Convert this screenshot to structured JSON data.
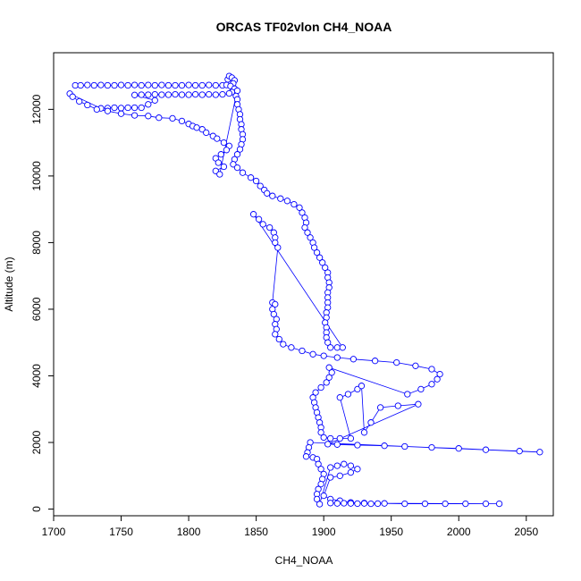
{
  "chart_data": {
    "type": "scatter",
    "title": "ORCAS TF02vlon CH4_NOAA",
    "xlabel": "CH4_NOAA",
    "ylabel": "Altitude (m)",
    "xlim": [
      1700,
      2070
    ],
    "ylim": [
      -200,
      13700
    ],
    "x_ticks": [
      1700,
      1750,
      1800,
      1850,
      1900,
      1950,
      2000,
      2050
    ],
    "y_ticks": [
      0,
      2000,
      4000,
      6000,
      8000,
      10000,
      12000
    ],
    "x_tick_labels": [
      "1700",
      "1750",
      "1800",
      "1850",
      "1900",
      "1950",
      "2000",
      "2050"
    ],
    "y_tick_labels": [
      "0",
      "2000",
      "4000",
      "6000",
      "8000",
      "10000",
      "12000"
    ],
    "point_color": "#0000ff",
    "series": [
      {
        "name": "CH4_NOAA",
        "points": [
          [
            1716,
            12720
          ],
          [
            1720,
            12720
          ],
          [
            1725,
            12730
          ],
          [
            1730,
            12720
          ],
          [
            1735,
            12730
          ],
          [
            1740,
            12720
          ],
          [
            1745,
            12720
          ],
          [
            1750,
            12730
          ],
          [
            1755,
            12720
          ],
          [
            1760,
            12730
          ],
          [
            1765,
            12720
          ],
          [
            1770,
            12730
          ],
          [
            1775,
            12720
          ],
          [
            1780,
            12730
          ],
          [
            1785,
            12720
          ],
          [
            1790,
            12720
          ],
          [
            1795,
            12720
          ],
          [
            1800,
            12730
          ],
          [
            1805,
            12720
          ],
          [
            1810,
            12720
          ],
          [
            1815,
            12730
          ],
          [
            1820,
            12720
          ],
          [
            1825,
            12720
          ],
          [
            1828,
            12730
          ],
          [
            1829,
            12900
          ],
          [
            1830,
            13000
          ],
          [
            1832,
            12950
          ],
          [
            1834,
            12870
          ],
          [
            1833,
            12780
          ],
          [
            1831,
            12700
          ],
          [
            1834,
            12620
          ],
          [
            1836,
            12560
          ],
          [
            1832,
            12520
          ],
          [
            1830,
            12480
          ],
          [
            1825,
            12450
          ],
          [
            1820,
            12440
          ],
          [
            1815,
            12450
          ],
          [
            1810,
            12440
          ],
          [
            1805,
            12450
          ],
          [
            1800,
            12440
          ],
          [
            1795,
            12440
          ],
          [
            1790,
            12450
          ],
          [
            1785,
            12440
          ],
          [
            1780,
            12440
          ],
          [
            1775,
            12450
          ],
          [
            1770,
            12440
          ],
          [
            1765,
            12440
          ],
          [
            1760,
            12430
          ],
          [
            1775,
            12270
          ],
          [
            1770,
            12150
          ],
          [
            1765,
            12050
          ],
          [
            1760,
            12050
          ],
          [
            1755,
            12050
          ],
          [
            1750,
            12040
          ],
          [
            1745,
            12050
          ],
          [
            1740,
            12040
          ],
          [
            1735,
            12030
          ],
          [
            1712,
            12470
          ],
          [
            1714,
            12380
          ],
          [
            1719,
            12240
          ],
          [
            1725,
            12130
          ],
          [
            1732,
            12000
          ],
          [
            1740,
            11950
          ],
          [
            1750,
            11870
          ],
          [
            1760,
            11820
          ],
          [
            1770,
            11800
          ],
          [
            1778,
            11750
          ],
          [
            1788,
            11730
          ],
          [
            1795,
            11650
          ],
          [
            1800,
            11560
          ],
          [
            1803,
            11500
          ],
          [
            1806,
            11450
          ],
          [
            1810,
            11400
          ],
          [
            1813,
            11300
          ],
          [
            1818,
            11200
          ],
          [
            1821,
            11120
          ],
          [
            1826,
            11000
          ],
          [
            1830,
            10900
          ],
          [
            1828,
            10780
          ],
          [
            1824,
            10650
          ],
          [
            1820,
            10530
          ],
          [
            1822,
            10400
          ],
          [
            1826,
            10280
          ],
          [
            1820,
            10150
          ],
          [
            1823,
            10050
          ],
          [
            1835,
            12400
          ],
          [
            1836,
            12300
          ],
          [
            1836,
            12150
          ],
          [
            1837,
            12000
          ],
          [
            1838,
            11850
          ],
          [
            1838,
            11700
          ],
          [
            1839,
            11550
          ],
          [
            1839,
            11400
          ],
          [
            1840,
            11250
          ],
          [
            1840,
            11100
          ],
          [
            1839,
            10950
          ],
          [
            1838,
            10800
          ],
          [
            1836,
            10650
          ],
          [
            1834,
            10500
          ],
          [
            1833,
            10350
          ],
          [
            1836,
            10250
          ],
          [
            1840,
            10100
          ],
          [
            1846,
            9950
          ],
          [
            1850,
            9850
          ],
          [
            1853,
            9700
          ],
          [
            1856,
            9580
          ],
          [
            1858,
            9480
          ],
          [
            1862,
            9400
          ],
          [
            1868,
            9320
          ],
          [
            1873,
            9250
          ],
          [
            1878,
            9150
          ],
          [
            1882,
            9050
          ],
          [
            1884,
            8900
          ],
          [
            1886,
            8750
          ],
          [
            1887,
            8600
          ],
          [
            1886,
            8450
          ],
          [
            1888,
            8300
          ],
          [
            1890,
            8150
          ],
          [
            1892,
            8000
          ],
          [
            1893,
            7850
          ],
          [
            1895,
            7700
          ],
          [
            1897,
            7550
          ],
          [
            1899,
            7400
          ],
          [
            1901,
            7250
          ],
          [
            1903,
            7100
          ],
          [
            1903,
            6950
          ],
          [
            1904,
            6800
          ],
          [
            1904,
            6650
          ],
          [
            1903,
            6500
          ],
          [
            1903,
            6350
          ],
          [
            1903,
            6200
          ],
          [
            1903,
            6050
          ],
          [
            1902,
            5900
          ],
          [
            1902,
            5750
          ],
          [
            1901,
            5600
          ],
          [
            1902,
            5450
          ],
          [
            1902,
            5300
          ],
          [
            1902,
            5150
          ],
          [
            1903,
            5000
          ],
          [
            1905,
            4850
          ],
          [
            1910,
            4850
          ],
          [
            1914,
            4850
          ],
          [
            1848,
            8850
          ],
          [
            1852,
            8700
          ],
          [
            1855,
            8550
          ],
          [
            1860,
            8450
          ],
          [
            1863,
            8300
          ],
          [
            1864,
            8150
          ],
          [
            1864,
            8000
          ],
          [
            1866,
            7850
          ],
          [
            1862,
            6200
          ],
          [
            1864,
            6150
          ],
          [
            1862,
            6000
          ],
          [
            1863,
            5850
          ],
          [
            1865,
            5700
          ],
          [
            1864,
            5550
          ],
          [
            1865,
            5400
          ],
          [
            1864,
            5250
          ],
          [
            1867,
            5100
          ],
          [
            1870,
            4950
          ],
          [
            1876,
            4850
          ],
          [
            1884,
            4750
          ],
          [
            1892,
            4650
          ],
          [
            1900,
            4600
          ],
          [
            1910,
            4550
          ],
          [
            1922,
            4500
          ],
          [
            1938,
            4450
          ],
          [
            1954,
            4400
          ],
          [
            1968,
            4300
          ],
          [
            1980,
            4200
          ],
          [
            1986,
            4050
          ],
          [
            1984,
            3900
          ],
          [
            1980,
            3750
          ],
          [
            1972,
            3600
          ],
          [
            1962,
            3450
          ],
          [
            1904,
            4250
          ],
          [
            1906,
            4100
          ],
          [
            1904,
            3950
          ],
          [
            1902,
            3800
          ],
          [
            1898,
            3650
          ],
          [
            1894,
            3500
          ],
          [
            1892,
            3350
          ],
          [
            1893,
            3200
          ],
          [
            1894,
            3050
          ],
          [
            1895,
            2900
          ],
          [
            1896,
            2750
          ],
          [
            1897,
            2600
          ],
          [
            1898,
            2450
          ],
          [
            1898,
            2300
          ],
          [
            1900,
            2150
          ],
          [
            1905,
            2120
          ],
          [
            1912,
            2120
          ],
          [
            1920,
            2120
          ],
          [
            1912,
            3350
          ],
          [
            1918,
            3450
          ],
          [
            1925,
            3600
          ],
          [
            1928,
            3700
          ],
          [
            1930,
            2300
          ],
          [
            1935,
            2600
          ],
          [
            1942,
            3050
          ],
          [
            1955,
            3100
          ],
          [
            1970,
            3150
          ],
          [
            1903,
            1950
          ],
          [
            1910,
            1940
          ],
          [
            1925,
            1920
          ],
          [
            1945,
            1900
          ],
          [
            1960,
            1880
          ],
          [
            1980,
            1850
          ],
          [
            2000,
            1820
          ],
          [
            2020,
            1780
          ],
          [
            2045,
            1740
          ],
          [
            2060,
            1710
          ],
          [
            1890,
            2000
          ],
          [
            1889,
            1850
          ],
          [
            1888,
            1700
          ],
          [
            1887,
            1580
          ],
          [
            1892,
            1550
          ],
          [
            1895,
            1500
          ],
          [
            1896,
            1350
          ],
          [
            1898,
            1200
          ],
          [
            1900,
            1050
          ],
          [
            1899,
            900
          ],
          [
            1898,
            750
          ],
          [
            1896,
            600
          ],
          [
            1895,
            450
          ],
          [
            1895,
            300
          ],
          [
            1897,
            150
          ],
          [
            1905,
            1250
          ],
          [
            1910,
            1300
          ],
          [
            1915,
            1350
          ],
          [
            1920,
            1300
          ],
          [
            1925,
            1200
          ],
          [
            1920,
            1100
          ],
          [
            1912,
            1000
          ],
          [
            1905,
            950
          ],
          [
            1900,
            400
          ],
          [
            1905,
            300
          ],
          [
            1912,
            250
          ],
          [
            1920,
            200
          ],
          [
            1930,
            180
          ],
          [
            1945,
            170
          ],
          [
            1960,
            160
          ],
          [
            1975,
            160
          ],
          [
            1990,
            160
          ],
          [
            2005,
            160
          ],
          [
            2020,
            160
          ],
          [
            2030,
            160
          ],
          [
            1905,
            180
          ],
          [
            1910,
            170
          ],
          [
            1915,
            175
          ],
          [
            1920,
            170
          ],
          [
            1925,
            165
          ],
          [
            1930,
            170
          ],
          [
            1935,
            160
          ],
          [
            1940,
            165
          ]
        ]
      }
    ]
  }
}
